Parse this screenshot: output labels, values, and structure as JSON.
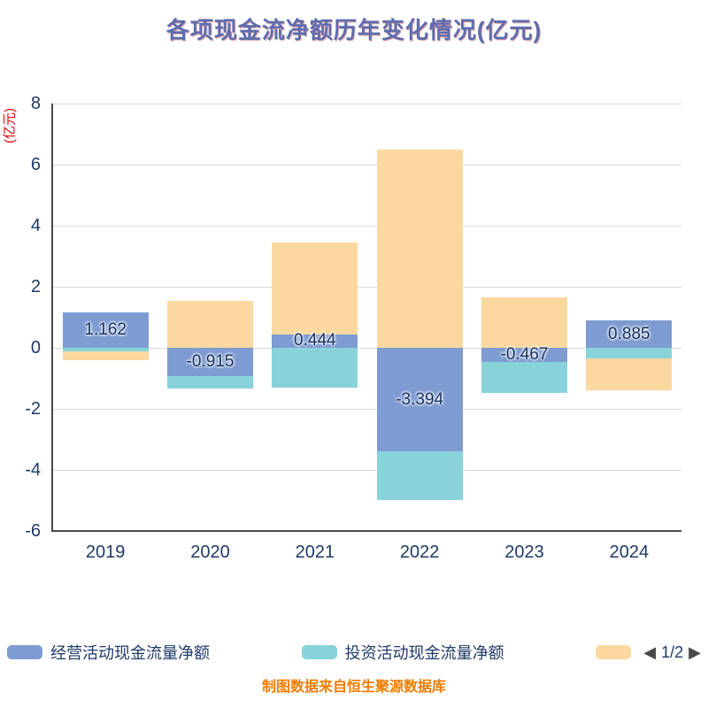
{
  "title": "各项现金流净额历年变化情况(亿元)",
  "y_axis_title": "(亿元)",
  "footer": "制图数据来自恒生聚源数据库",
  "legend": {
    "pagination": {
      "label": "1/2",
      "prev": "◀",
      "next": "▶"
    }
  },
  "colors": {
    "operating_series": "#7e9bd2",
    "investing_series": "#88d3da",
    "financing_series": "#fbd8a0",
    "axis_text": "#1f3a68",
    "y_axis_title": "#e60000",
    "footer_text": "#f07c00"
  },
  "chart_data": {
    "type": "bar",
    "stacked": true,
    "title": "各项现金流净额历年变化情况(亿元)",
    "ylabel": "(亿元)",
    "xlabel": "",
    "ylim": [
      -6,
      8
    ],
    "yticks": [
      8,
      6,
      4,
      2,
      0,
      -2,
      -4,
      -6
    ],
    "grid": true,
    "legend_position": "bottom",
    "categories": [
      "2019",
      "2020",
      "2021",
      "2022",
      "2023",
      "2024"
    ],
    "series": [
      {
        "name": "经营活动现金流量净额",
        "color": "#7e9bd2",
        "values": [
          1.162,
          -0.915,
          0.444,
          -3.394,
          -0.467,
          0.885
        ]
      },
      {
        "name": "投资活动现金流量净额",
        "color": "#88d3da",
        "values": [
          -0.12,
          -0.43,
          -1.3,
          -1.6,
          -1.0,
          -0.35
        ]
      },
      {
        "name": "",
        "color": "#fbd8a0",
        "values": [
          -0.3,
          1.55,
          3.0,
          6.5,
          1.65,
          -1.05
        ]
      }
    ],
    "bar_labels": [
      "1.162",
      "-0.915",
      "0.444",
      "-3.394",
      "-0.467",
      "0.885"
    ]
  }
}
